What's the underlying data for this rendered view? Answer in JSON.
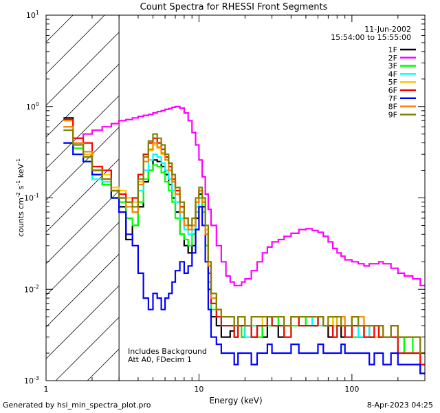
{
  "chart_data": {
    "type": "line",
    "title": "Count Spectra for RHESSI Front Segments",
    "xlabel": "Energy (keV)",
    "ylabel_parts": [
      "counts cm",
      "-2",
      " s",
      "-1",
      " keV",
      "-1"
    ],
    "xscale": "log",
    "yscale": "log",
    "xlim": [
      1,
      300
    ],
    "ylim": [
      0.001,
      10
    ],
    "x_ticks": [
      {
        "value": 1,
        "label": "1"
      },
      {
        "value": 10,
        "label": "10"
      },
      {
        "value": 100,
        "label": "100"
      }
    ],
    "y_ticks": [
      {
        "value": 0.001,
        "base": "10",
        "exp": "-3"
      },
      {
        "value": 0.01,
        "base": "10",
        "exp": "-2"
      },
      {
        "value": 0.1,
        "base": "10",
        "exp": "-1"
      },
      {
        "value": 1,
        "base": "10",
        "exp": "0"
      },
      {
        "value": 10,
        "base": "10",
        "exp": "1"
      }
    ],
    "hatched_region": {
      "x_from": 1,
      "x_to": 3
    },
    "legend_header": [
      "11-Jun-2002",
      "15:54:00 to 15:55:00"
    ],
    "legend_position": "top-right",
    "annotations": [
      "Includes Background",
      "Att A0, FDecim 1"
    ],
    "x_bins": [
      1.3,
      1.5,
      1.75,
      2.0,
      2.33,
      2.67,
      3.0,
      3.33,
      3.67,
      4.0,
      4.33,
      4.67,
      5.0,
      5.33,
      5.67,
      6.0,
      6.33,
      6.67,
      7.0,
      7.5,
      8.0,
      8.5,
      9.0,
      9.5,
      10.0,
      10.5,
      11.0,
      11.5,
      12.0,
      13.0,
      14.0,
      15.0,
      16.0,
      17.0,
      18.0,
      19.0,
      20.0,
      22.0,
      24.0,
      26.0,
      28.0,
      30.0,
      33.0,
      36.0,
      40.0,
      45.0,
      50.0,
      55.0,
      60.0,
      65.0,
      70.0,
      75.0,
      80.0,
      85.0,
      90.0,
      100.0,
      110.0,
      120.0,
      130.0,
      140.0,
      150.0,
      160.0,
      180.0,
      200.0,
      220.0,
      250.0,
      280.0
    ],
    "series": [
      {
        "name": "1F",
        "color": "#000000",
        "values": [
          0.75,
          0.4,
          0.3,
          0.2,
          0.14,
          0.1,
          0.08,
          0.035,
          0.05,
          0.08,
          0.15,
          0.2,
          0.26,
          0.25,
          0.22,
          0.18,
          0.14,
          0.1,
          0.07,
          0.04,
          0.03,
          0.025,
          0.03,
          0.06,
          0.11,
          0.08,
          0.03,
          0.01,
          0.005,
          0.004,
          0.003,
          0.003,
          0.0035,
          0.003,
          0.004,
          0.003,
          0.004,
          0.003,
          0.004,
          0.003,
          0.005,
          0.004,
          0.003,
          0.004,
          0.005,
          0.004,
          0.005,
          0.004,
          0.005,
          0.004,
          0.003,
          0.005,
          0.004,
          0.003,
          0.004,
          0.005,
          0.003,
          0.004,
          0.003,
          0.004,
          0.003,
          0.003,
          0.004,
          0.003,
          0.002,
          0.002,
          0.0012
        ]
      },
      {
        "name": "2F",
        "color": "#ff00ff",
        "values": [
          0.4,
          0.45,
          0.5,
          0.55,
          0.6,
          0.65,
          0.7,
          0.72,
          0.75,
          0.78,
          0.8,
          0.82,
          0.85,
          0.88,
          0.9,
          0.93,
          0.95,
          0.98,
          1.0,
          0.96,
          0.85,
          0.7,
          0.52,
          0.38,
          0.26,
          0.17,
          0.11,
          0.075,
          0.05,
          0.03,
          0.02,
          0.014,
          0.012,
          0.011,
          0.011,
          0.012,
          0.013,
          0.016,
          0.02,
          0.025,
          0.029,
          0.033,
          0.035,
          0.038,
          0.041,
          0.045,
          0.046,
          0.044,
          0.042,
          0.038,
          0.033,
          0.028,
          0.025,
          0.023,
          0.021,
          0.02,
          0.019,
          0.018,
          0.019,
          0.019,
          0.02,
          0.019,
          0.017,
          0.015,
          0.014,
          0.013,
          0.011
        ]
      },
      {
        "name": "3F",
        "color": "#00ff00",
        "values": [
          0.6,
          0.35,
          0.25,
          0.18,
          0.14,
          0.1,
          0.09,
          0.06,
          0.05,
          0.09,
          0.16,
          0.2,
          0.23,
          0.22,
          0.19,
          0.15,
          0.12,
          0.09,
          0.06,
          0.04,
          0.035,
          0.03,
          0.04,
          0.07,
          0.1,
          0.07,
          0.03,
          0.012,
          0.006,
          0.005,
          0.004,
          0.004,
          0.004,
          0.003,
          0.004,
          0.003,
          0.004,
          0.004,
          0.003,
          0.004,
          0.004,
          0.005,
          0.004,
          0.003,
          0.004,
          0.005,
          0.004,
          0.004,
          0.005,
          0.004,
          0.004,
          0.003,
          0.004,
          0.004,
          0.004,
          0.003,
          0.004,
          0.003,
          0.003,
          0.004,
          0.003,
          0.003,
          0.003,
          0.002,
          0.003,
          0.002,
          0.0015
        ]
      },
      {
        "name": "4F",
        "color": "#00ffff",
        "values": [
          0.7,
          0.38,
          0.3,
          0.16,
          0.15,
          0.12,
          0.1,
          0.08,
          0.07,
          0.12,
          0.2,
          0.26,
          0.3,
          0.28,
          0.24,
          0.2,
          0.16,
          0.12,
          0.09,
          0.06,
          0.045,
          0.04,
          0.045,
          0.08,
          0.12,
          0.09,
          0.04,
          0.015,
          0.007,
          0.005,
          0.004,
          0.004,
          0.004,
          0.003,
          0.004,
          0.004,
          0.003,
          0.004,
          0.004,
          0.004,
          0.005,
          0.004,
          0.004,
          0.004,
          0.005,
          0.004,
          0.004,
          0.005,
          0.004,
          0.004,
          0.004,
          0.003,
          0.004,
          0.004,
          0.003,
          0.004,
          0.003,
          0.003,
          0.004,
          0.003,
          0.003,
          0.003,
          0.003,
          0.002,
          0.002,
          0.002,
          0.0015
        ]
      },
      {
        "name": "5F",
        "color": "#ffc800",
        "values": [
          0.7,
          0.4,
          0.3,
          0.22,
          0.18,
          0.13,
          0.12,
          0.1,
          0.09,
          0.15,
          0.25,
          0.33,
          0.38,
          0.35,
          0.3,
          0.26,
          0.2,
          0.15,
          0.11,
          0.07,
          0.05,
          0.045,
          0.05,
          0.09,
          0.12,
          0.09,
          0.045,
          0.02,
          0.009,
          0.006,
          0.005,
          0.005,
          0.005,
          0.004,
          0.005,
          0.005,
          0.004,
          0.005,
          0.005,
          0.004,
          0.005,
          0.005,
          0.005,
          0.004,
          0.005,
          0.005,
          0.005,
          0.005,
          0.005,
          0.004,
          0.005,
          0.004,
          0.005,
          0.004,
          0.004,
          0.005,
          0.004,
          0.004,
          0.004,
          0.003,
          0.004,
          0.003,
          0.004,
          0.003,
          0.003,
          0.003,
          0.002
        ]
      },
      {
        "name": "6F",
        "color": "#ff0000",
        "values": [
          0.72,
          0.45,
          0.4,
          0.22,
          0.2,
          0.12,
          0.11,
          0.09,
          0.1,
          0.18,
          0.3,
          0.4,
          0.45,
          0.4,
          0.34,
          0.28,
          0.22,
          0.16,
          0.12,
          0.08,
          0.06,
          0.05,
          0.05,
          0.09,
          0.12,
          0.09,
          0.04,
          0.015,
          0.007,
          0.005,
          0.004,
          0.004,
          0.004,
          0.003,
          0.004,
          0.004,
          0.004,
          0.003,
          0.004,
          0.004,
          0.005,
          0.004,
          0.004,
          0.003,
          0.005,
          0.004,
          0.004,
          0.004,
          0.005,
          0.004,
          0.004,
          0.003,
          0.004,
          0.004,
          0.003,
          0.004,
          0.004,
          0.003,
          0.003,
          0.004,
          0.003,
          0.003,
          0.003,
          0.002,
          0.002,
          0.002,
          0.0015
        ]
      },
      {
        "name": "7F",
        "color": "#0000ff",
        "values": [
          0.4,
          0.3,
          0.25,
          0.18,
          0.16,
          0.1,
          0.07,
          0.04,
          0.03,
          0.015,
          0.008,
          0.006,
          0.009,
          0.008,
          0.006,
          0.008,
          0.009,
          0.012,
          0.016,
          0.02,
          0.015,
          0.018,
          0.025,
          0.045,
          0.08,
          0.05,
          0.02,
          0.006,
          0.003,
          0.0025,
          0.002,
          0.002,
          0.002,
          0.0015,
          0.002,
          0.002,
          0.002,
          0.0015,
          0.002,
          0.002,
          0.0025,
          0.002,
          0.002,
          0.002,
          0.0025,
          0.002,
          0.002,
          0.002,
          0.0025,
          0.002,
          0.002,
          0.002,
          0.002,
          0.0025,
          0.002,
          0.002,
          0.002,
          0.002,
          0.0015,
          0.002,
          0.002,
          0.0015,
          0.002,
          0.0015,
          0.0015,
          0.0015,
          0.0012
        ]
      },
      {
        "name": "8F",
        "color": "#ff8000",
        "values": [
          0.6,
          0.4,
          0.32,
          0.2,
          0.16,
          0.12,
          0.1,
          0.08,
          0.07,
          0.14,
          0.25,
          0.34,
          0.4,
          0.36,
          0.31,
          0.26,
          0.2,
          0.15,
          0.11,
          0.07,
          0.05,
          0.045,
          0.05,
          0.09,
          0.12,
          0.09,
          0.04,
          0.018,
          0.008,
          0.006,
          0.005,
          0.005,
          0.005,
          0.004,
          0.005,
          0.005,
          0.004,
          0.005,
          0.005,
          0.005,
          0.005,
          0.005,
          0.005,
          0.004,
          0.005,
          0.005,
          0.005,
          0.005,
          0.005,
          0.004,
          0.005,
          0.005,
          0.005,
          0.005,
          0.004,
          0.005,
          0.005,
          0.004,
          0.004,
          0.004,
          0.004,
          0.003,
          0.004,
          0.003,
          0.003,
          0.003,
          0.002
        ]
      },
      {
        "name": "9F",
        "color": "#808000",
        "values": [
          0.55,
          0.38,
          0.28,
          0.2,
          0.16,
          0.12,
          0.1,
          0.09,
          0.08,
          0.16,
          0.28,
          0.42,
          0.5,
          0.45,
          0.38,
          0.3,
          0.24,
          0.18,
          0.13,
          0.09,
          0.06,
          0.05,
          0.06,
          0.1,
          0.13,
          0.1,
          0.05,
          0.02,
          0.009,
          0.006,
          0.005,
          0.005,
          0.005,
          0.004,
          0.005,
          0.005,
          0.004,
          0.005,
          0.005,
          0.005,
          0.005,
          0.005,
          0.005,
          0.004,
          0.005,
          0.005,
          0.005,
          0.005,
          0.005,
          0.004,
          0.005,
          0.005,
          0.005,
          0.004,
          0.004,
          0.005,
          0.004,
          0.004,
          0.004,
          0.004,
          0.004,
          0.003,
          0.004,
          0.003,
          0.003,
          0.003,
          0.002
        ]
      }
    ]
  },
  "footer": {
    "generated_by": "Generated by hsi_min_spectra_plot.pro",
    "date": "8-Apr-2023 04:25"
  }
}
